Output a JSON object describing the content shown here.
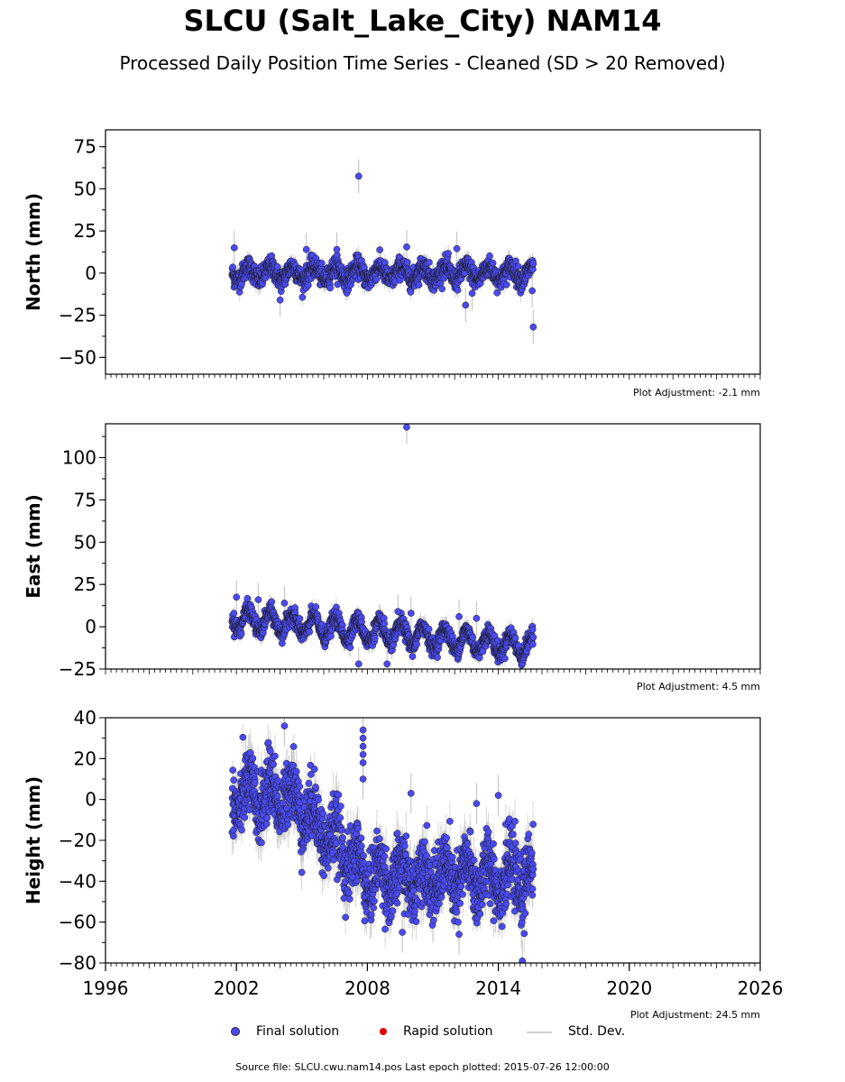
{
  "title": "SLCU (Salt_Lake_City) NAM14",
  "subtitle": "Processed Daily Position Time Series - Cleaned (SD > 20 Removed)",
  "legend": {
    "final": "Final solution",
    "rapid": "Rapid solution",
    "std": "Std. Dev."
  },
  "footer": "Source file: SLCU.cwu.nam14.pos  Last epoch plotted: 2015-07-26 12:00:00",
  "colors": {
    "final": "#4a4af0",
    "rapid": "#e00000",
    "std": "#bdbdbd"
  },
  "chart_data": [
    {
      "type": "scatter",
      "ylabel": "North (mm)",
      "adjustment": "Plot Adjustment: -2.1 mm",
      "ylim": [
        -60,
        85
      ],
      "yticks": [
        75,
        50,
        25,
        0,
        -25,
        -50
      ],
      "ytick_labels": [
        "75",
        "50",
        "25",
        "0",
        "−25",
        "−50"
      ],
      "xlim": [
        1996,
        2026
      ],
      "x_range": [
        2001.8,
        2015.6
      ],
      "baseline": 0,
      "seasonal_amplitude": 4,
      "noise": 3,
      "stdev": 4,
      "series": [
        {
          "name": "Final solution",
          "points": [
            [
              2007.6,
              57.5
            ],
            [
              2004.0,
              -16
            ],
            [
              2012.5,
              -19
            ],
            [
              2015.6,
              -32
            ],
            [
              2009.8,
              15.5
            ],
            [
              2012.1,
              14.5
            ],
            [
              2005.2,
              14
            ],
            [
              2006.6,
              14
            ],
            [
              2001.9,
              15
            ],
            [
              2012.8,
              -12
            ],
            [
              2015.55,
              -10.5
            ]
          ]
        }
      ]
    },
    {
      "type": "scatter",
      "ylabel": "East (mm)",
      "adjustment": "Plot Adjustment: 4.5 mm",
      "ylim": [
        -25,
        120
      ],
      "yticks": [
        100,
        75,
        50,
        25,
        0,
        -25
      ],
      "ytick_labels": [
        "100",
        "75",
        "50",
        "25",
        "0",
        "−25"
      ],
      "xlim": [
        1996,
        2026
      ],
      "x_range": [
        2001.8,
        2015.6
      ],
      "baseline": [
        5,
        -12
      ],
      "seasonal_amplitude": 6,
      "noise": 2.5,
      "stdev": 4,
      "series": [
        {
          "name": "Final solution",
          "points": [
            [
              2009.8,
              118
            ],
            [
              2002.0,
              17.5
            ],
            [
              2003.0,
              16
            ],
            [
              2004.2,
              14
            ],
            [
              2009.4,
              9
            ],
            [
              2010.0,
              8
            ],
            [
              2012.2,
              6
            ],
            [
              2013.0,
              5
            ],
            [
              2007.6,
              -22
            ],
            [
              2008.9,
              -22
            ]
          ]
        }
      ]
    },
    {
      "type": "scatter",
      "ylabel": "Height (mm)",
      "adjustment": "Plot Adjustment: 24.5 mm",
      "ylim": [
        -80,
        40
      ],
      "yticks": [
        40,
        20,
        0,
        -20,
        -40,
        -60,
        -80
      ],
      "ytick_labels": [
        "40",
        "20",
        "0",
        "−20",
        "−40",
        "−60",
        "−80"
      ],
      "xlim": [
        1996,
        2026
      ],
      "xticks": [
        1996,
        2002,
        2008,
        2014,
        2020,
        2026
      ],
      "xtick_labels": [
        "1996",
        "2002",
        "2008",
        "2014",
        "2020",
        "2026"
      ],
      "x_range": [
        2001.8,
        2015.6
      ],
      "baseline": [
        2,
        -38
      ],
      "seasonal_amplitude": 8,
      "noise": 8,
      "stdev": 8,
      "series": [
        {
          "name": "Final solution",
          "points": [
            [
              2004.2,
              36
            ],
            [
              2007.8,
              34
            ],
            [
              2007.8,
              30
            ],
            [
              2007.8,
              26
            ],
            [
              2007.8,
              22
            ],
            [
              2007.8,
              18
            ],
            [
              2007.8,
              10
            ],
            [
              2010.0,
              3
            ],
            [
              2013.0,
              -2
            ],
            [
              2015.1,
              -79
            ],
            [
              2012.2,
              -66
            ],
            [
              2009.6,
              -65
            ],
            [
              2014.0,
              2
            ]
          ]
        }
      ]
    }
  ]
}
